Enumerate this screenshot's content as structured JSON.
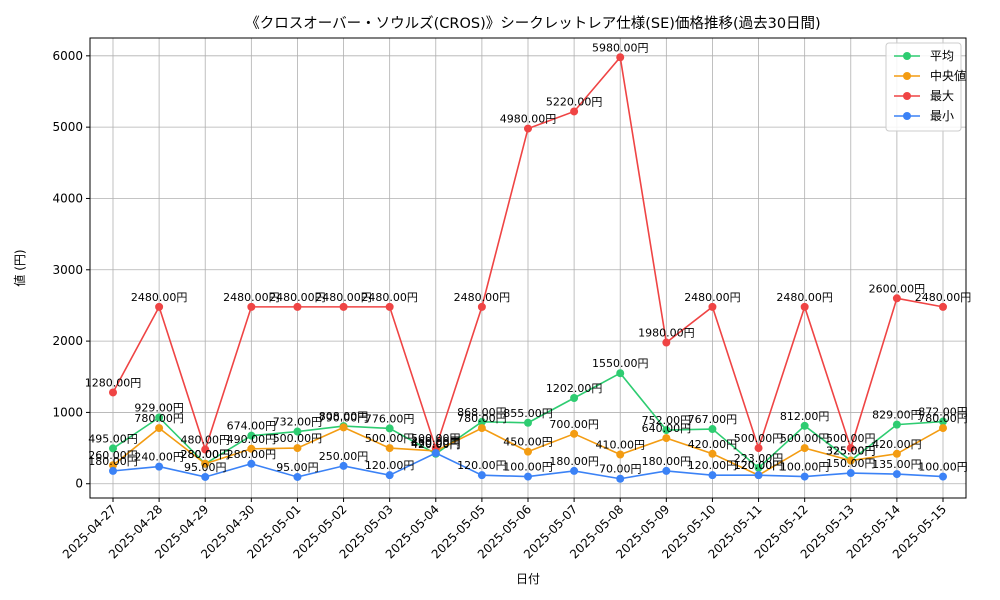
{
  "chart_data": {
    "type": "line",
    "title": "《クロスオーバー・ソウルズ(CROS)》シークレットレア仕様(SE)価格推移(過去30日間)",
    "xlabel": "日付",
    "ylabel": "値 (円)",
    "ylim": [
      -200,
      6250
    ],
    "yticks": [
      0,
      1000,
      2000,
      3000,
      4000,
      5000,
      6000
    ],
    "grid": true,
    "legend_position": "top-right",
    "categories": [
      "2025-04-27",
      "2025-04-28",
      "2025-04-29",
      "2025-04-30",
      "2025-05-01",
      "2025-05-02",
      "2025-05-03",
      "2025-05-04",
      "2025-05-05",
      "2025-05-06",
      "2025-05-07",
      "2025-05-08",
      "2025-05-09",
      "2025-05-10",
      "2025-05-11",
      "2025-05-12",
      "2025-05-13",
      "2025-05-14",
      "2025-05-15"
    ],
    "series": [
      {
        "name": "平均",
        "color": "#2ecc71",
        "values": [
          495,
          929,
          280,
          674,
          732,
          808,
          776,
          420,
          868,
          855,
          1202,
          1550,
          752,
          767,
          223,
          812,
          325,
          829,
          872
        ],
        "labels": [
          "495.00円",
          "929.00円",
          "280.00円",
          "674.00円",
          "732.00円",
          "808.00円",
          "776.00円",
          "420.00円",
          "868.00円",
          "855.00円",
          "1202.00円",
          "1550.00円",
          "752.00円",
          "767.00円",
          "223.00円",
          "812.00円",
          "325.00円",
          "829.00円",
          "872.00円"
        ]
      },
      {
        "name": "中央値",
        "color": "#f39c12",
        "values": [
          260,
          780,
          280,
          490,
          500,
          790,
          500,
          460,
          780,
          450,
          700,
          410,
          640,
          420,
          120,
          500,
          325,
          420,
          780
        ],
        "labels": [
          "260.00円",
          "780.00円",
          "280.00円",
          "490.00円",
          "500.00円",
          "790.00円",
          "500.00円",
          "460.00円",
          "780.00円",
          "450.00円",
          "700.00円",
          "410.00円",
          "640.00円",
          "420.00円",
          "120.00円",
          "500.00円",
          "325.00円",
          "420.00円",
          "780.00円"
        ]
      },
      {
        "name": "最大",
        "color": "#ef4444",
        "values": [
          1280,
          2480,
          480,
          2480,
          2480,
          2480,
          2480,
          500,
          2480,
          4980,
          5220,
          5980,
          1980,
          2480,
          500,
          2480,
          500,
          2600,
          2480
        ],
        "labels": [
          "1280.00円",
          "2480.00円",
          "480.00円",
          "2480.00円",
          "2480.00円",
          "2480.00円",
          "2480.00円",
          "500.00円",
          "2480.00円",
          "4980.00円",
          "5220.00円",
          "5980.00円",
          "1980.00円",
          "2480.00円",
          "500.00円",
          "2480.00円",
          "500.00円",
          "2600.00円",
          "2480.00円"
        ]
      },
      {
        "name": "最小",
        "color": "#3b82f6",
        "values": [
          180,
          240,
          95,
          280,
          95,
          250,
          120,
          430,
          120,
          100,
          180,
          70,
          180,
          120,
          120,
          100,
          150,
          135,
          100
        ],
        "labels": [
          "180.00円",
          "240.00円",
          "95.00円",
          "280.00円",
          "95.00円",
          "250.00円",
          "120.00円",
          "430.00円",
          "120.00円",
          "100.00円",
          "180.00円",
          "70.00円",
          "180.00円",
          "120.00円",
          "120.00円",
          "100.00円",
          "150.00円",
          "135.00円",
          "100.00円"
        ]
      }
    ]
  }
}
